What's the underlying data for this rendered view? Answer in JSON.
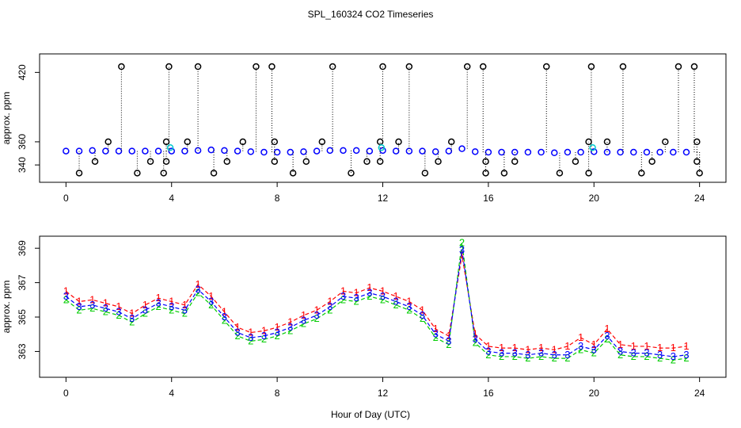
{
  "chart_data": [
    {
      "type": "scatter",
      "title": "SPL_160324  CO2 Timeseries",
      "ylabel": "approx. ppm",
      "xlim": [
        -1,
        25
      ],
      "ylim": [
        325,
        436
      ],
      "xticks": [
        0,
        4,
        8,
        12,
        16,
        20,
        24
      ],
      "yticks": [
        340,
        360,
        420
      ],
      "series": [
        {
          "color": "#0000ff",
          "x": [
            0,
            0.5,
            1,
            1.5,
            2,
            2.5,
            3,
            3.5,
            4,
            4.5,
            5,
            5.5,
            6,
            6.5,
            7,
            7.5,
            8,
            8.5,
            9,
            9.5,
            10,
            10.5,
            11,
            11.5,
            12,
            12.5,
            13,
            13.5,
            14,
            14.5,
            15,
            15.5,
            16,
            16.5,
            17,
            17.5,
            18,
            18.5,
            19,
            19.5,
            20,
            20.5,
            21,
            21.5,
            22,
            22.5,
            23,
            23.5
          ],
          "values": [
            352,
            352,
            352.5,
            352,
            352,
            352,
            352,
            352,
            352,
            352,
            352.5,
            353,
            352.5,
            352,
            351.5,
            351,
            351,
            351,
            351.5,
            352,
            352.5,
            352.5,
            352.5,
            352,
            352.5,
            352,
            352,
            352,
            351.5,
            352,
            354,
            351.5,
            351,
            351,
            351,
            351,
            351,
            350.5,
            351,
            351,
            351.5,
            351,
            351,
            351,
            351,
            351,
            351,
            351
          ]
        },
        {
          "color": "#000000",
          "drop": true,
          "x": [
            2.1,
            3.9,
            5.0,
            7.2,
            7.8,
            10.1,
            12.0,
            13.0,
            15.2,
            15.8,
            18.2,
            19.9,
            21.1,
            23.2,
            23.8,
            1.6,
            3.8,
            4.6,
            6.7,
            7.9,
            9.7,
            11.9,
            12.6,
            14.6,
            19.8,
            20.5,
            22.7,
            23.9,
            1.1,
            3.2,
            3.8,
            6.1,
            7.9,
            9.1,
            11.4,
            11.9,
            14.1,
            15.9,
            17.0,
            19.3,
            22.2,
            23.9,
            0.5,
            2.7,
            3.7,
            5.6,
            8.6,
            10.8,
            13.6,
            15.9,
            16.6,
            18.7,
            19.8,
            21.8,
            24.0
          ],
          "values": [
            425,
            425,
            425,
            425,
            425,
            425,
            425,
            425,
            425,
            425,
            425,
            425,
            425,
            425,
            425,
            360,
            360,
            360,
            360,
            360,
            360,
            360,
            360,
            360,
            360,
            360,
            360,
            360,
            343,
            343,
            343,
            343,
            343,
            343,
            343,
            343,
            343,
            343,
            343,
            343,
            343,
            343,
            333,
            333,
            333,
            333,
            333,
            333,
            333,
            333,
            333,
            333,
            333,
            333,
            333
          ]
        },
        {
          "color": "#00cccc",
          "x": [
            3.95,
            11.95,
            19.95
          ],
          "values": [
            355,
            355,
            355
          ]
        }
      ]
    },
    {
      "type": "line",
      "ylabel": "approx. ppm",
      "xlabel": "Hour of Day (UTC)",
      "xlim": [
        -1,
        25
      ],
      "ylim": [
        361.5,
        369.7
      ],
      "xticks": [
        0,
        4,
        8,
        12,
        16,
        20,
        24
      ],
      "yticks": [
        363,
        365,
        367,
        369
      ],
      "x": [
        0,
        0.5,
        1,
        1.5,
        2,
        2.5,
        3,
        3.5,
        4,
        4.5,
        5,
        5.5,
        6,
        6.5,
        7,
        7.5,
        8,
        8.5,
        9,
        9.5,
        10,
        10.5,
        11,
        11.5,
        12,
        12.5,
        13,
        13.5,
        14,
        14.5,
        15,
        15.5,
        16,
        16.5,
        17,
        17.5,
        18,
        18.5,
        19,
        19.5,
        20,
        20.5,
        21,
        21.5,
        22,
        22.5,
        23,
        23.5
      ],
      "series": [
        {
          "name": "1",
          "color": "#ff0000",
          "values": [
            366.5,
            365.9,
            366.0,
            365.8,
            365.6,
            365.2,
            365.7,
            366.1,
            365.9,
            365.7,
            366.9,
            366.2,
            365.3,
            364.4,
            364.1,
            364.2,
            364.4,
            364.7,
            365.1,
            365.4,
            365.9,
            366.5,
            366.4,
            366.7,
            366.5,
            366.2,
            365.9,
            365.4,
            364.3,
            363.9,
            368.6,
            364.0,
            363.3,
            363.2,
            363.2,
            363.1,
            363.2,
            363.1,
            363.3,
            363.8,
            363.4,
            364.3,
            363.4,
            363.3,
            363.3,
            363.2,
            363.2,
            363.3
          ]
        },
        {
          "name": "2",
          "color": "#00cc00",
          "values": [
            366.0,
            365.4,
            365.5,
            365.3,
            365.1,
            364.7,
            365.2,
            365.6,
            365.4,
            365.2,
            366.4,
            365.7,
            364.8,
            363.9,
            363.6,
            363.7,
            363.9,
            364.2,
            364.6,
            364.9,
            365.4,
            366.0,
            365.9,
            366.2,
            366.0,
            365.7,
            365.4,
            364.9,
            363.8,
            363.4,
            369.3,
            363.5,
            362.8,
            362.7,
            362.7,
            362.6,
            362.7,
            362.6,
            362.6,
            363.1,
            362.9,
            363.7,
            362.8,
            362.7,
            362.7,
            362.6,
            362.5,
            362.6
          ]
        },
        {
          "name": "3",
          "color": "#0000ff",
          "values": [
            366.2,
            365.6,
            365.7,
            365.5,
            365.3,
            364.9,
            365.4,
            365.8,
            365.6,
            365.4,
            366.6,
            365.9,
            365.0,
            364.1,
            363.8,
            363.9,
            364.1,
            364.4,
            364.8,
            365.1,
            365.6,
            366.2,
            366.1,
            366.4,
            366.2,
            365.9,
            365.6,
            365.1,
            364.0,
            363.6,
            368.9,
            363.7,
            363.0,
            362.9,
            362.9,
            362.8,
            362.9,
            362.8,
            362.8,
            363.3,
            363.1,
            363.9,
            363.0,
            362.9,
            362.9,
            362.8,
            362.7,
            362.8
          ]
        }
      ]
    }
  ]
}
